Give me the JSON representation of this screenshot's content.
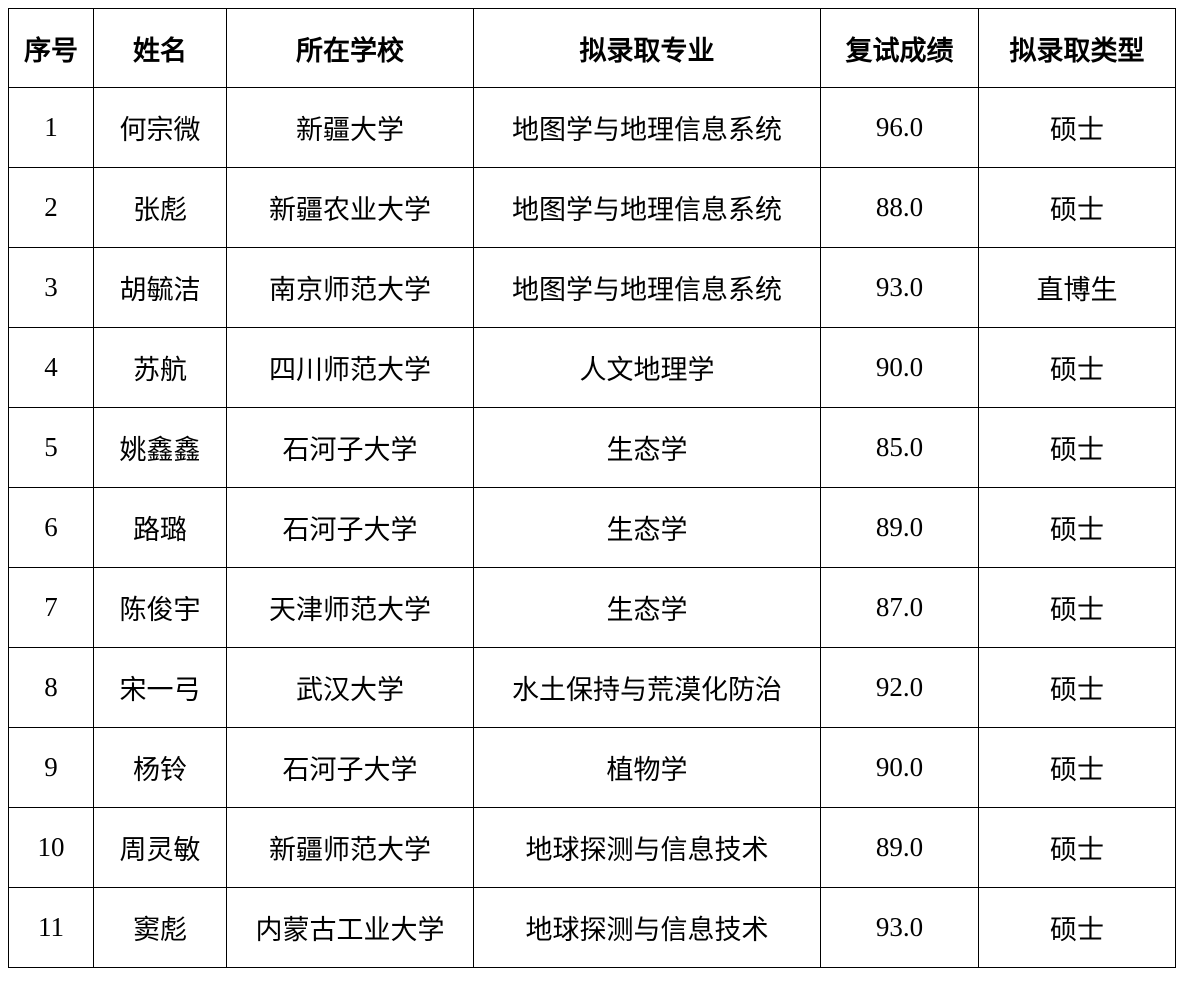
{
  "headers": [
    "序号",
    "姓名",
    "所在学校",
    "拟录取专业",
    "复试成绩",
    "拟录取类型"
  ],
  "rows": [
    [
      "1",
      "何宗微",
      "新疆大学",
      "地图学与地理信息系统",
      "96.0",
      "硕士"
    ],
    [
      "2",
      "张彪",
      "新疆农业大学",
      "地图学与地理信息系统",
      "88.0",
      "硕士"
    ],
    [
      "3",
      "胡毓洁",
      "南京师范大学",
      "地图学与地理信息系统",
      "93.0",
      "直博生"
    ],
    [
      "4",
      "苏航",
      "四川师范大学",
      "人文地理学",
      "90.0",
      "硕士"
    ],
    [
      "5",
      "姚鑫鑫",
      "石河子大学",
      "生态学",
      "85.0",
      "硕士"
    ],
    [
      "6",
      "路璐",
      "石河子大学",
      "生态学",
      "89.0",
      "硕士"
    ],
    [
      "7",
      "陈俊宇",
      "天津师范大学",
      "生态学",
      "87.0",
      "硕士"
    ],
    [
      "8",
      "宋一弓",
      "武汉大学",
      "水土保持与荒漠化防治",
      "92.0",
      "硕士"
    ],
    [
      "9",
      "杨铃",
      "石河子大学",
      "植物学",
      "90.0",
      "硕士"
    ],
    [
      "10",
      "周灵敏",
      "新疆师范大学",
      "地球探测与信息技术",
      "89.0",
      "硕士"
    ],
    [
      "11",
      "窦彪",
      "内蒙古工业大学",
      "地球探测与信息技术",
      "93.0",
      "硕士"
    ]
  ]
}
